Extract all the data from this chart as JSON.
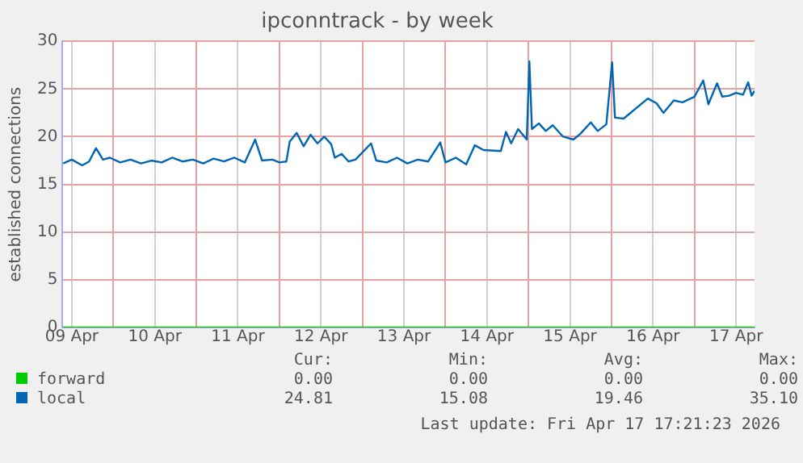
{
  "chart_data": {
    "type": "line",
    "title": "ipconntrack - by week",
    "ylabel": "established connections",
    "xlim": [
      "2026-04-09T09:20",
      "2026-04-17T17:20"
    ],
    "xticks": [
      {
        "value": "2026-04-09T12:00",
        "label": "09 Apr"
      },
      {
        "value": "2026-04-10T00:00",
        "label": null
      },
      {
        "value": "2026-04-10T12:00",
        "label": "10 Apr"
      },
      {
        "value": "2026-04-11T00:00",
        "label": null
      },
      {
        "value": "2026-04-11T12:00",
        "label": "11 Apr"
      },
      {
        "value": "2026-04-12T00:00",
        "label": null
      },
      {
        "value": "2026-04-12T12:00",
        "label": "12 Apr"
      },
      {
        "value": "2026-04-13T00:00",
        "label": null
      },
      {
        "value": "2026-04-13T12:00",
        "label": "13 Apr"
      },
      {
        "value": "2026-04-14T00:00",
        "label": null
      },
      {
        "value": "2026-04-14T12:00",
        "label": "14 Apr"
      },
      {
        "value": "2026-04-15T00:00",
        "label": null
      },
      {
        "value": "2026-04-15T12:00",
        "label": "15 Apr"
      },
      {
        "value": "2026-04-16T00:00",
        "label": null
      },
      {
        "value": "2026-04-16T12:00",
        "label": "16 Apr"
      },
      {
        "value": "2026-04-17T00:00",
        "label": null
      },
      {
        "value": "2026-04-17T12:00",
        "label": "17 Apr"
      }
    ],
    "ylim": [
      0,
      30
    ],
    "yticks": [
      0,
      5,
      10,
      15,
      20,
      25,
      30
    ],
    "grid": true,
    "legend": "bottom left",
    "series": [
      {
        "name": "forward",
        "color": "#00cc00",
        "x": [
          "2026-04-09T09:20",
          "2026-04-17T17:20"
        ],
        "values": [
          0,
          0
        ]
      },
      {
        "name": "local",
        "color": "#0066b3",
        "x": [
          "2026-04-09T09:30",
          "2026-04-09T12:00",
          "2026-04-09T15:00",
          "2026-04-09T17:00",
          "2026-04-09T19:00",
          "2026-04-09T21:00",
          "2026-04-09T23:00",
          "2026-04-10T02:00",
          "2026-04-10T05:00",
          "2026-04-10T08:00",
          "2026-04-10T11:00",
          "2026-04-10T14:00",
          "2026-04-10T17:00",
          "2026-04-10T20:00",
          "2026-04-10T23:00",
          "2026-04-11T02:00",
          "2026-04-11T05:00",
          "2026-04-11T08:00",
          "2026-04-11T11:00",
          "2026-04-11T14:00",
          "2026-04-11T17:00",
          "2026-04-11T19:00",
          "2026-04-11T22:00",
          "2026-04-12T00:00",
          "2026-04-12T02:00",
          "2026-04-12T03:00",
          "2026-04-12T05:00",
          "2026-04-12T07:00",
          "2026-04-12T09:00",
          "2026-04-12T11:00",
          "2026-04-12T13:00",
          "2026-04-12T15:00",
          "2026-04-12T16:00",
          "2026-04-12T18:00",
          "2026-04-12T20:00",
          "2026-04-12T22:00",
          "2026-04-13T02:30",
          "2026-04-13T04:00",
          "2026-04-13T07:00",
          "2026-04-13T10:00",
          "2026-04-13T13:00",
          "2026-04-13T16:00",
          "2026-04-13T19:00",
          "2026-04-13T22:30",
          "2026-04-14T00:00",
          "2026-04-14T03:00",
          "2026-04-14T06:00",
          "2026-04-14T08:30",
          "2026-04-14T11:00",
          "2026-04-14T16:00",
          "2026-04-14T17:30",
          "2026-04-14T19:00",
          "2026-04-14T21:00",
          "2026-04-14T23:30",
          "2026-04-15T00:15",
          "2026-04-15T01:00",
          "2026-04-15T03:00",
          "2026-04-15T05:00",
          "2026-04-15T07:00",
          "2026-04-15T10:00",
          "2026-04-15T13:00",
          "2026-04-15T15:00",
          "2026-04-15T18:00",
          "2026-04-15T20:00",
          "2026-04-15T22:30",
          "2026-04-16T00:10",
          "2026-04-16T01:00",
          "2026-04-16T03:30",
          "2026-04-16T10:30",
          "2026-04-16T13:00",
          "2026-04-16T15:00",
          "2026-04-16T18:00",
          "2026-04-16T20:30",
          "2026-04-17T00:00",
          "2026-04-17T02:30",
          "2026-04-17T04:00",
          "2026-04-17T06:30",
          "2026-04-17T08:00",
          "2026-04-17T10:00",
          "2026-04-17T12:00",
          "2026-04-17T14:00",
          "2026-04-17T15:30",
          "2026-04-17T16:30",
          "2026-04-17T17:20"
        ],
        "values": [
          17.2,
          17.6,
          17.0,
          17.4,
          18.8,
          17.6,
          17.8,
          17.3,
          17.6,
          17.2,
          17.5,
          17.3,
          17.8,
          17.4,
          17.6,
          17.2,
          17.7,
          17.4,
          17.8,
          17.3,
          19.7,
          17.5,
          17.6,
          17.3,
          17.4,
          19.5,
          20.4,
          19.0,
          20.2,
          19.3,
          20.0,
          19.2,
          17.8,
          18.2,
          17.4,
          17.6,
          19.3,
          17.5,
          17.3,
          17.8,
          17.2,
          17.6,
          17.4,
          19.4,
          17.3,
          17.8,
          17.1,
          19.1,
          18.6,
          18.5,
          20.5,
          19.3,
          20.8,
          19.7,
          27.9,
          20.8,
          21.4,
          20.6,
          21.2,
          20.0,
          19.7,
          20.3,
          21.5,
          20.6,
          21.3,
          27.8,
          22.0,
          21.9,
          24.0,
          23.5,
          22.5,
          23.8,
          23.6,
          24.2,
          25.9,
          23.4,
          25.6,
          24.2,
          24.3,
          24.6,
          24.4,
          25.7,
          24.3,
          24.8
        ]
      }
    ],
    "annotations": [
      "Cur:",
      "Min:",
      "Avg:",
      "Max:",
      "0.00",
      "0.00",
      "0.00",
      "0.00",
      "24.81",
      "15.08",
      "19.46",
      "35.10",
      "Last update: Fri Apr 17 17:21:23 2026"
    ]
  }
}
